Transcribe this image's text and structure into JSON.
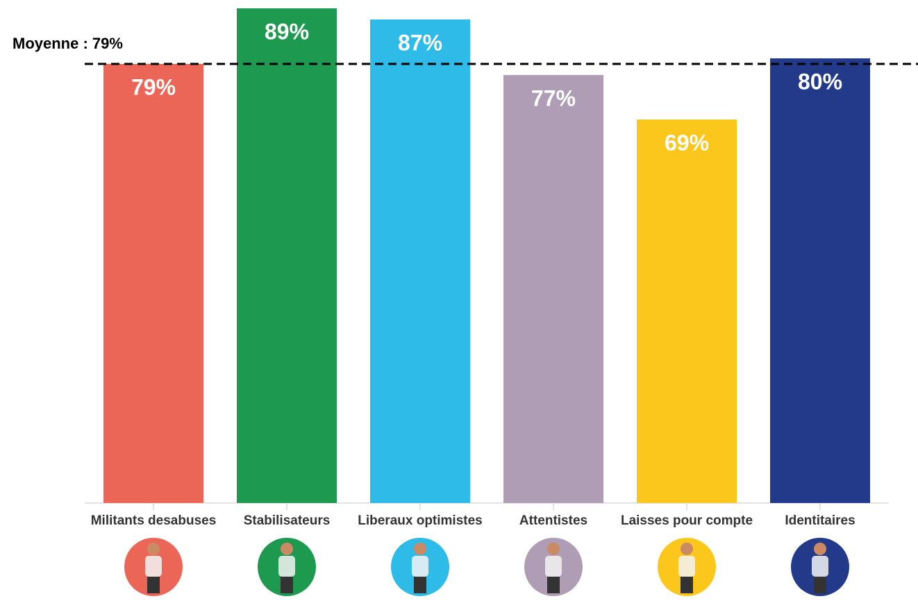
{
  "chart_data": {
    "type": "bar",
    "categories": [
      "Militants desabuses",
      "Stabilisateurs",
      "Liberaux optimistes",
      "Attentistes",
      "Laisses pour compte",
      "Identitaires"
    ],
    "values": [
      79,
      89,
      87,
      77,
      69,
      80
    ],
    "value_labels": [
      "79%",
      "89%",
      "87%",
      "77%",
      "69%",
      "80%"
    ],
    "colors": [
      "#ec6658",
      "#1e9a50",
      "#2ebbe8",
      "#ae9db5",
      "#fcc71d",
      "#233a8b"
    ],
    "ylim": [
      0,
      90.5
    ],
    "average": {
      "value": 79,
      "label": "Moyenne : 79%"
    }
  }
}
